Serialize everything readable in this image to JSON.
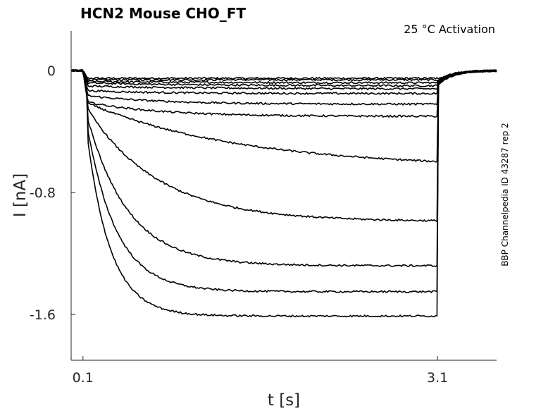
{
  "chart_data": {
    "type": "line",
    "title": "HCN2  Mouse  CHO_FT",
    "subtitle": "25 °C  Activation",
    "side_label": "BBP Channelpedia ID 43287 rep 2",
    "xlabel": "t [s]",
    "ylabel": "I [nA]",
    "xlim": [
      0.0,
      3.6
    ],
    "ylim": [
      -1.9,
      0.26
    ],
    "xticks": [
      {
        "value": 0.1,
        "label": "0.1"
      },
      {
        "value": 3.1,
        "label": "3.1"
      }
    ],
    "yticks": [
      {
        "value": 0,
        "label": "0"
      },
      {
        "value": -0.8,
        "label": "-0.8"
      },
      {
        "value": -1.6,
        "label": "-1.6"
      }
    ],
    "grid": false,
    "step_start_s": 0.1,
    "step_end_s": 3.1,
    "series": [
      {
        "initial": -0.05,
        "steady": -0.05,
        "tau": 1.0
      },
      {
        "initial": -0.06,
        "steady": -0.06,
        "tau": 1.0
      },
      {
        "initial": -0.07,
        "steady": -0.08,
        "tau": 1.0
      },
      {
        "initial": -0.08,
        "steady": -0.1,
        "tau": 1.0
      },
      {
        "initial": -0.1,
        "steady": -0.12,
        "tau": 1.0
      },
      {
        "initial": -0.13,
        "steady": -0.15,
        "tau": 0.6
      },
      {
        "initial": -0.16,
        "steady": -0.22,
        "tau": 0.6
      },
      {
        "initial": -0.2,
        "steady": -0.3,
        "tau": 0.6
      },
      {
        "initial": -0.2,
        "steady": -0.64,
        "tau": 1.3
      },
      {
        "initial": -0.2,
        "steady": -0.99,
        "tau": 0.6
      },
      {
        "initial": -0.2,
        "steady": -1.28,
        "tau": 0.35
      },
      {
        "initial": -0.2,
        "steady": -1.45,
        "tau": 0.25
      },
      {
        "initial": -0.2,
        "steady": -1.61,
        "tau": 0.2
      }
    ]
  }
}
